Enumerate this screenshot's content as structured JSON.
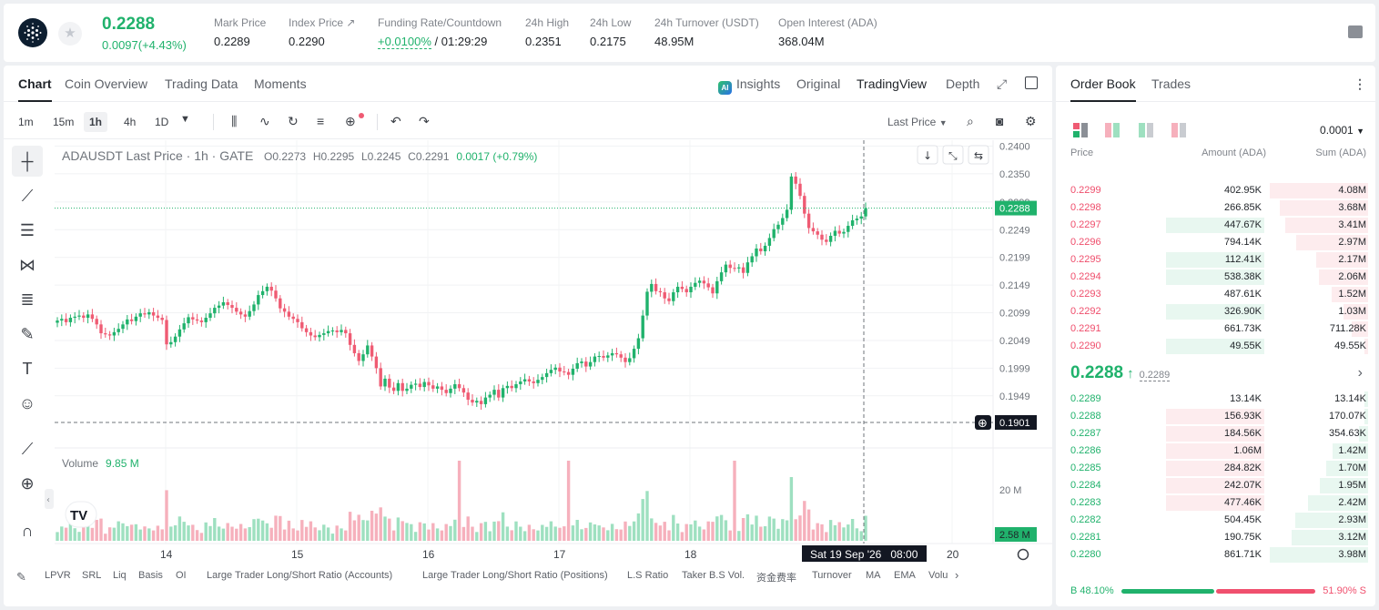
{
  "header": {
    "last_price": "0.2288",
    "change": "0.0097(+4.43%)",
    "stats": [
      {
        "label": "Mark Price",
        "value": "0.2289"
      },
      {
        "label": "Index Price ↗",
        "value": "0.2290"
      },
      {
        "label": "Funding Rate/Countdown",
        "rate": "+0.0100%",
        "value": "/ 01:29:29"
      },
      {
        "label": "24h High",
        "value": "0.2351"
      },
      {
        "label": "24h Low",
        "value": "0.2175"
      },
      {
        "label": "24h Turnover (USDT)",
        "value": "48.95M"
      },
      {
        "label": "Open Interest (ADA)",
        "value": "368.04M"
      }
    ]
  },
  "chart_tabs": [
    "Chart",
    "Coin Overview",
    "Trading Data",
    "Moments"
  ],
  "chart_views": {
    "insights": "Insights",
    "original": "Original",
    "tradingview": "TradingView",
    "depth": "Depth"
  },
  "timeframes": [
    "1m",
    "15m",
    "1h",
    "4h",
    "1D"
  ],
  "active_timeframe": "1h",
  "price_type": "Last Price",
  "legend": {
    "symbol": "ADAUSDT Last Price · 1h · GATE",
    "open": "O0.2273",
    "high": "H0.2295",
    "low": "L0.2245",
    "close": "C0.2291",
    "change": "0.0017 (+0.79%)"
  },
  "volume_legend": {
    "label": "Volume",
    "value": "9.85 M"
  },
  "crosshair": {
    "price": "0.1901",
    "time": "Sat 19 Sep '26   08:00"
  },
  "bottom_indicators": [
    "LPVR",
    "SRL",
    "Liq",
    "Basis",
    "OI",
    "Large Trader Long/Short Ratio (Accounts)",
    "Large Trader Long/Short Ratio (Positions)",
    "L.S Ratio",
    "Taker B.S Vol.",
    "资金费率",
    "Turnover",
    "MA",
    "EMA",
    "Volu"
  ],
  "chart_data": {
    "type": "candlestick",
    "y_axis_ticks": [
      "0.2400",
      "0.2350",
      "0.2299",
      "0.2249",
      "0.2199",
      "0.2149",
      "0.2099",
      "0.2049",
      "0.1999",
      "0.1949"
    ],
    "x_axis_ticks": [
      "14",
      "15",
      "16",
      "17",
      "18",
      "20"
    ],
    "last_price_label": "0.2288",
    "volume_axis_ticks": [
      "20 M"
    ],
    "last_volume_label": "2.58 M",
    "ylim": [
      0.1901,
      0.2404
    ],
    "closes": [
      0.2085,
      0.2088,
      0.2082,
      0.209,
      0.2092,
      0.2094,
      0.209,
      0.2096,
      0.2088,
      0.2078,
      0.2062,
      0.206,
      0.2058,
      0.2064,
      0.207,
      0.2078,
      0.2087,
      0.2084,
      0.2092,
      0.2098,
      0.2096,
      0.21,
      0.2094,
      0.209,
      0.2086,
      0.2042,
      0.2046,
      0.2056,
      0.2069,
      0.208,
      0.2091,
      0.2087,
      0.2085,
      0.2082,
      0.209,
      0.2098,
      0.2108,
      0.2112,
      0.2118,
      0.2113,
      0.2108,
      0.2101,
      0.2096,
      0.2092,
      0.2102,
      0.2114,
      0.2131,
      0.2138,
      0.2146,
      0.2139,
      0.2125,
      0.2107,
      0.2101,
      0.2092,
      0.2088,
      0.2082,
      0.2071,
      0.2064,
      0.2058,
      0.2055,
      0.2059,
      0.2062,
      0.2066,
      0.2067,
      0.2064,
      0.2068,
      0.2062,
      0.2041,
      0.2026,
      0.2012,
      0.2024,
      0.204,
      0.202,
      0.1999,
      0.1966,
      0.198,
      0.1964,
      0.1958,
      0.1972,
      0.1958,
      0.1962,
      0.1969,
      0.1971,
      0.1965,
      0.1974,
      0.1968,
      0.1962,
      0.1966,
      0.196,
      0.1954,
      0.1962,
      0.197,
      0.1963,
      0.1955,
      0.1942,
      0.1937,
      0.194,
      0.1934,
      0.1946,
      0.1951,
      0.196,
      0.1946,
      0.1963,
      0.1967,
      0.1963,
      0.197,
      0.1975,
      0.1979,
      0.1975,
      0.1972,
      0.1978,
      0.1983,
      0.199,
      0.1996,
      0.2,
      0.1993,
      0.1992,
      0.1987,
      0.1998,
      0.2008,
      0.2011,
      0.2002,
      0.201,
      0.202,
      0.2021,
      0.2018,
      0.2022,
      0.2026,
      0.2024,
      0.2018,
      0.201,
      0.2017,
      0.2034,
      0.2053,
      0.2094,
      0.2137,
      0.2151,
      0.2138,
      0.2136,
      0.2125,
      0.212,
      0.2136,
      0.2146,
      0.2142,
      0.2136,
      0.2146,
      0.2153,
      0.2157,
      0.2152,
      0.2145,
      0.2134,
      0.2156,
      0.2172,
      0.2186,
      0.218,
      0.2179,
      0.2181,
      0.2171,
      0.219,
      0.2201,
      0.2215,
      0.221,
      0.222,
      0.2234,
      0.225,
      0.2258,
      0.227,
      0.2285,
      0.2345,
      0.2332,
      0.231,
      0.2278,
      0.2252,
      0.2246,
      0.224,
      0.2231,
      0.2227,
      0.2238,
      0.2247,
      0.2242,
      0.2245,
      0.2256,
      0.2266,
      0.2269,
      0.2273,
      0.2288
    ]
  },
  "order_book": {
    "tabs": [
      "Order Book",
      "Trades"
    ],
    "precision": "0.0001",
    "headers": {
      "price": "Price",
      "amount": "Amount (ADA)",
      "sum": "Sum (ADA)"
    },
    "asks": [
      {
        "price": "0.2299",
        "amount": "402.95K",
        "sum": "4.08M",
        "amt_frac": 0.0,
        "sum_frac": 1.0
      },
      {
        "price": "0.2298",
        "amount": "266.85K",
        "sum": "3.68M",
        "amt_frac": 0.0,
        "sum_frac": 0.9
      },
      {
        "price": "0.2297",
        "amount": "447.67K",
        "sum": "3.41M",
        "amt_frac": 0.56,
        "sum_frac": 0.84
      },
      {
        "price": "0.2296",
        "amount": "794.14K",
        "sum": "2.97M",
        "amt_frac": 0.0,
        "sum_frac": 0.73
      },
      {
        "price": "0.2295",
        "amount": "112.41K",
        "sum": "2.17M",
        "amt_frac": 0.56,
        "sum_frac": 0.53
      },
      {
        "price": "0.2294",
        "amount": "538.38K",
        "sum": "2.06M",
        "amt_frac": 0.56,
        "sum_frac": 0.5
      },
      {
        "price": "0.2293",
        "amount": "487.61K",
        "sum": "1.52M",
        "amt_frac": 0.0,
        "sum_frac": 0.37
      },
      {
        "price": "0.2292",
        "amount": "326.90K",
        "sum": "1.03M",
        "amt_frac": 0.56,
        "sum_frac": 0.25
      },
      {
        "price": "0.2291",
        "amount": "661.73K",
        "sum": "711.28K",
        "amt_frac": 0.0,
        "sum_frac": 0.17
      },
      {
        "price": "0.2290",
        "amount": "49.55K",
        "sum": "49.55K",
        "amt_frac": 0.56,
        "sum_frac": 0.01
      }
    ],
    "mid_price": "0.2288",
    "mark_price": "0.2289",
    "bids": [
      {
        "price": "0.2289",
        "amount": "13.14K",
        "sum": "13.14K",
        "amt_frac": 0.0,
        "sum_frac": 0.01
      },
      {
        "price": "0.2288",
        "amount": "156.93K",
        "sum": "170.07K",
        "amt_frac": 0.56,
        "sum_frac": 0.04
      },
      {
        "price": "0.2287",
        "amount": "184.56K",
        "sum": "354.63K",
        "amt_frac": 0.56,
        "sum_frac": 0.09
      },
      {
        "price": "0.2286",
        "amount": "1.06M",
        "sum": "1.42M",
        "amt_frac": 0.56,
        "sum_frac": 0.36
      },
      {
        "price": "0.2285",
        "amount": "284.82K",
        "sum": "1.70M",
        "amt_frac": 0.56,
        "sum_frac": 0.43
      },
      {
        "price": "0.2284",
        "amount": "242.07K",
        "sum": "1.95M",
        "amt_frac": 0.56,
        "sum_frac": 0.49
      },
      {
        "price": "0.2283",
        "amount": "477.46K",
        "sum": "2.42M",
        "amt_frac": 0.56,
        "sum_frac": 0.61
      },
      {
        "price": "0.2282",
        "amount": "504.45K",
        "sum": "2.93M",
        "amt_frac": 0.0,
        "sum_frac": 0.74
      },
      {
        "price": "0.2281",
        "amount": "190.75K",
        "sum": "3.12M",
        "amt_frac": 0.0,
        "sum_frac": 0.78
      },
      {
        "price": "0.2280",
        "amount": "861.71K",
        "sum": "3.98M",
        "amt_frac": 0.0,
        "sum_frac": 1.0
      }
    ],
    "buy_ratio": "B 48.10%",
    "sell_ratio": "51.90% S",
    "buy_frac": 0.481
  },
  "colors": {
    "up": "#20b26c",
    "down": "#ef5b73",
    "up_vol": "#9ee0c0",
    "down_vol": "#f6b0bc"
  }
}
